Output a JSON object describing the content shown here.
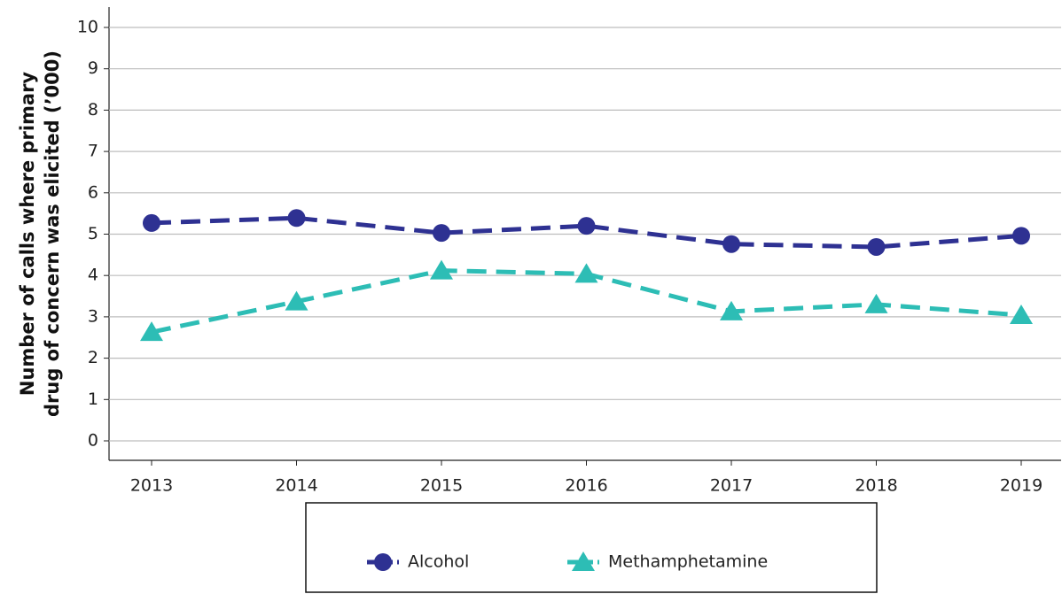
{
  "chart_data": {
    "type": "line",
    "ylabel": [
      "Number of calls where primary",
      "drug of concern was elicited (’000)"
    ],
    "categories": [
      "2013",
      "2014",
      "2015",
      "2016",
      "2017",
      "2018",
      "2019"
    ],
    "series": [
      {
        "name": "Alcohol",
        "color": "#2e3192",
        "marker": "circle",
        "values": [
          5.27,
          5.39,
          5.03,
          5.2,
          4.76,
          4.69,
          4.96
        ]
      },
      {
        "name": "Methamphetamine",
        "color": "#2dbdb5",
        "marker": "triangle",
        "values": [
          2.63,
          3.37,
          4.12,
          4.04,
          3.13,
          3.3,
          3.04
        ]
      }
    ],
    "ylim": [
      0,
      10
    ],
    "yticks": [
      0,
      1,
      2,
      3,
      4,
      5,
      6,
      7,
      8,
      9,
      10
    ],
    "grid": true,
    "legend": "bottom"
  }
}
